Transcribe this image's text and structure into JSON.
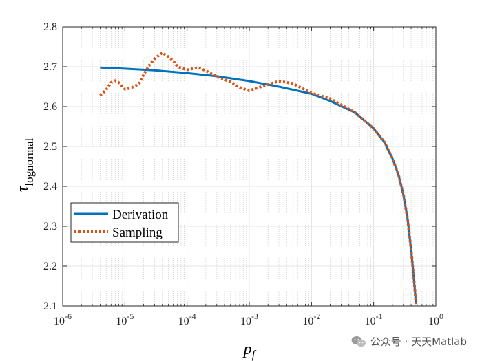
{
  "chart_data": {
    "type": "line",
    "xscale": "log",
    "xlim": [
      1e-06,
      1
    ],
    "ylim": [
      2.1,
      2.8
    ],
    "grid": true,
    "minor_grid": true,
    "legend_placement": "lower-left",
    "xlabel": "p_f",
    "ylabel": "τ_lognormal",
    "x_ticks": [
      1e-06,
      1e-05,
      0.0001,
      0.001,
      0.01,
      0.1,
      1
    ],
    "x_tick_labels": [
      {
        "base": "10",
        "exp": "-6"
      },
      {
        "base": "10",
        "exp": "-5"
      },
      {
        "base": "10",
        "exp": "-4"
      },
      {
        "base": "10",
        "exp": "-3"
      },
      {
        "base": "10",
        "exp": "-2"
      },
      {
        "base": "10",
        "exp": "-1"
      },
      {
        "base": "10",
        "exp": "0"
      }
    ],
    "y_ticks": [
      2.1,
      2.2,
      2.3,
      2.4,
      2.5,
      2.6,
      2.7,
      2.8
    ],
    "y_tick_labels": [
      "2.1",
      "2.2",
      "2.3",
      "2.4",
      "2.5",
      "2.6",
      "2.7",
      "2.8"
    ],
    "series": [
      {
        "name": "Derivation",
        "color": "#0072BD",
        "style": "solid",
        "x": [
          4e-06,
          1e-05,
          3e-05,
          0.0001,
          0.0003,
          0.001,
          0.003,
          0.01,
          0.02,
          0.05,
          0.1,
          0.15,
          0.2,
          0.25,
          0.3,
          0.35,
          0.4,
          0.43,
          0.46,
          0.48
        ],
        "y": [
          2.698,
          2.695,
          2.691,
          2.684,
          2.676,
          2.664,
          2.65,
          2.632,
          2.614,
          2.585,
          2.545,
          2.51,
          2.47,
          2.43,
          2.38,
          2.32,
          2.24,
          2.19,
          2.14,
          2.105
        ]
      },
      {
        "name": "Sampling",
        "color": "#D95319",
        "style": "dotted",
        "x": [
          4e-06,
          5e-06,
          6e-06,
          7e-06,
          8e-06,
          1e-05,
          1.2e-05,
          1.4e-05,
          1.7e-05,
          2e-05,
          2.5e-05,
          3e-05,
          4e-05,
          5e-05,
          6e-05,
          7e-05,
          0.0001,
          0.00015,
          0.0002,
          0.0003,
          0.0005,
          0.0007,
          0.001,
          0.0013,
          0.002,
          0.003,
          0.005,
          0.01,
          0.02,
          0.05,
          0.1,
          0.15,
          0.2,
          0.25,
          0.3,
          0.35,
          0.4,
          0.43,
          0.46,
          0.48
        ],
        "y": [
          2.628,
          2.642,
          2.66,
          2.665,
          2.66,
          2.644,
          2.646,
          2.65,
          2.658,
          2.68,
          2.705,
          2.72,
          2.735,
          2.725,
          2.715,
          2.7,
          2.692,
          2.698,
          2.69,
          2.675,
          2.662,
          2.648,
          2.64,
          2.646,
          2.655,
          2.664,
          2.658,
          2.634,
          2.62,
          2.585,
          2.545,
          2.51,
          2.47,
          2.43,
          2.38,
          2.32,
          2.24,
          2.19,
          2.14,
          2.105
        ]
      }
    ]
  },
  "watermark": {
    "icon": "wechat-icon",
    "text": "公众号 · 天天Matlab"
  }
}
